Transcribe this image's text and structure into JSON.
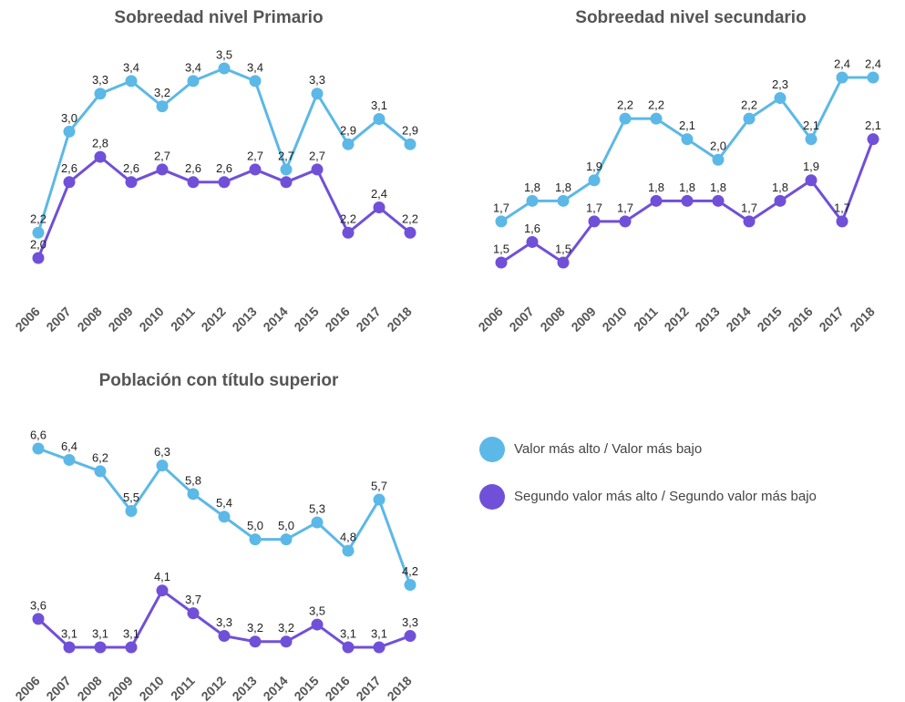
{
  "chart_data": [
    {
      "type": "line",
      "title": "Sobreedad nivel Primario",
      "categories": [
        "2006",
        "2007",
        "2008",
        "2009",
        "2010",
        "2011",
        "2012",
        "2013",
        "2014",
        "2015",
        "2016",
        "2017",
        "2018"
      ],
      "series": [
        {
          "name": "Valor más alto / Valor más bajo",
          "color": "#5cb8e6",
          "values": [
            2.2,
            3.0,
            3.3,
            3.4,
            3.2,
            3.4,
            3.5,
            3.4,
            2.7,
            3.3,
            2.9,
            3.1,
            2.9
          ],
          "value_labels": [
            "2,2",
            "3,0",
            "3,3",
            "3,4",
            "3,2",
            "3,4",
            "3,5",
            "3,4",
            "2,7",
            "3,3",
            "2,9",
            "3,1",
            "2,9"
          ]
        },
        {
          "name": "Segundo valor más alto / Segundo valor más bajo",
          "color": "#7050d8",
          "values": [
            2.0,
            2.6,
            2.8,
            2.6,
            2.7,
            2.6,
            2.6,
            2.7,
            2.6,
            2.7,
            2.2,
            2.4,
            2.2
          ],
          "value_labels": [
            "2,0",
            "2,6",
            "2,8",
            "2,6",
            "2,7",
            "2,6",
            "2,6",
            "2,7",
            null,
            "2,7",
            "2,2",
            "2,4",
            "2,2"
          ]
        }
      ]
    },
    {
      "type": "line",
      "title": "Sobreedad nivel secundario",
      "categories": [
        "2006",
        "2007",
        "2008",
        "2009",
        "2010",
        "2011",
        "2012",
        "2013",
        "2014",
        "2015",
        "2016",
        "2017",
        "2018"
      ],
      "series": [
        {
          "color": "#5cb8e6",
          "values": [
            1.7,
            1.8,
            1.8,
            1.9,
            2.2,
            2.2,
            2.1,
            2.0,
            2.2,
            2.3,
            2.1,
            2.4,
            2.4
          ],
          "value_labels": [
            "1,7",
            "1,8",
            "1,8",
            "1,9",
            "2,2",
            "2,2",
            "2,1",
            "2,0",
            "2,2",
            "2,3",
            "2,1",
            "2,4",
            "2,4"
          ]
        },
        {
          "color": "#7050d8",
          "values": [
            1.5,
            1.6,
            1.5,
            1.7,
            1.7,
            1.8,
            1.8,
            1.8,
            1.7,
            1.8,
            1.9,
            1.7,
            2.1
          ],
          "value_labels": [
            "1,5",
            "1,6",
            "1,5",
            "1,7",
            "1,7",
            "1,8",
            "1,8",
            "1,8",
            "1,7",
            "1,8",
            "1,9",
            "1,7",
            "2,1"
          ]
        }
      ]
    },
    {
      "type": "line",
      "title": "Población con título superior",
      "categories": [
        "2006",
        "2007",
        "2008",
        "2009",
        "2010",
        "2011",
        "2012",
        "2013",
        "2014",
        "2015",
        "2016",
        "2017",
        "2018"
      ],
      "series": [
        {
          "color": "#5cb8e6",
          "values": [
            6.6,
            6.4,
            6.2,
            5.5,
            6.3,
            5.8,
            5.4,
            5.0,
            5.0,
            5.3,
            4.8,
            5.7,
            4.2
          ],
          "value_labels": [
            "6,6",
            "6,4",
            "6,2",
            "5,5",
            "6,3",
            "5,8",
            "5,4",
            "5,0",
            "5,0",
            "5,3",
            "4,8",
            "5,7",
            "4,2"
          ]
        },
        {
          "color": "#7050d8",
          "values": [
            3.6,
            3.1,
            3.1,
            3.1,
            4.1,
            3.7,
            3.3,
            3.2,
            3.2,
            3.5,
            3.1,
            3.1,
            3.3
          ],
          "value_labels": [
            "3,6",
            "3,1",
            "3,1",
            "3,1",
            "4,1",
            "3,7",
            "3,3",
            "3,2",
            "3,2",
            "3,5",
            "3,1",
            "3,1",
            "3,3"
          ]
        }
      ]
    }
  ]
}
